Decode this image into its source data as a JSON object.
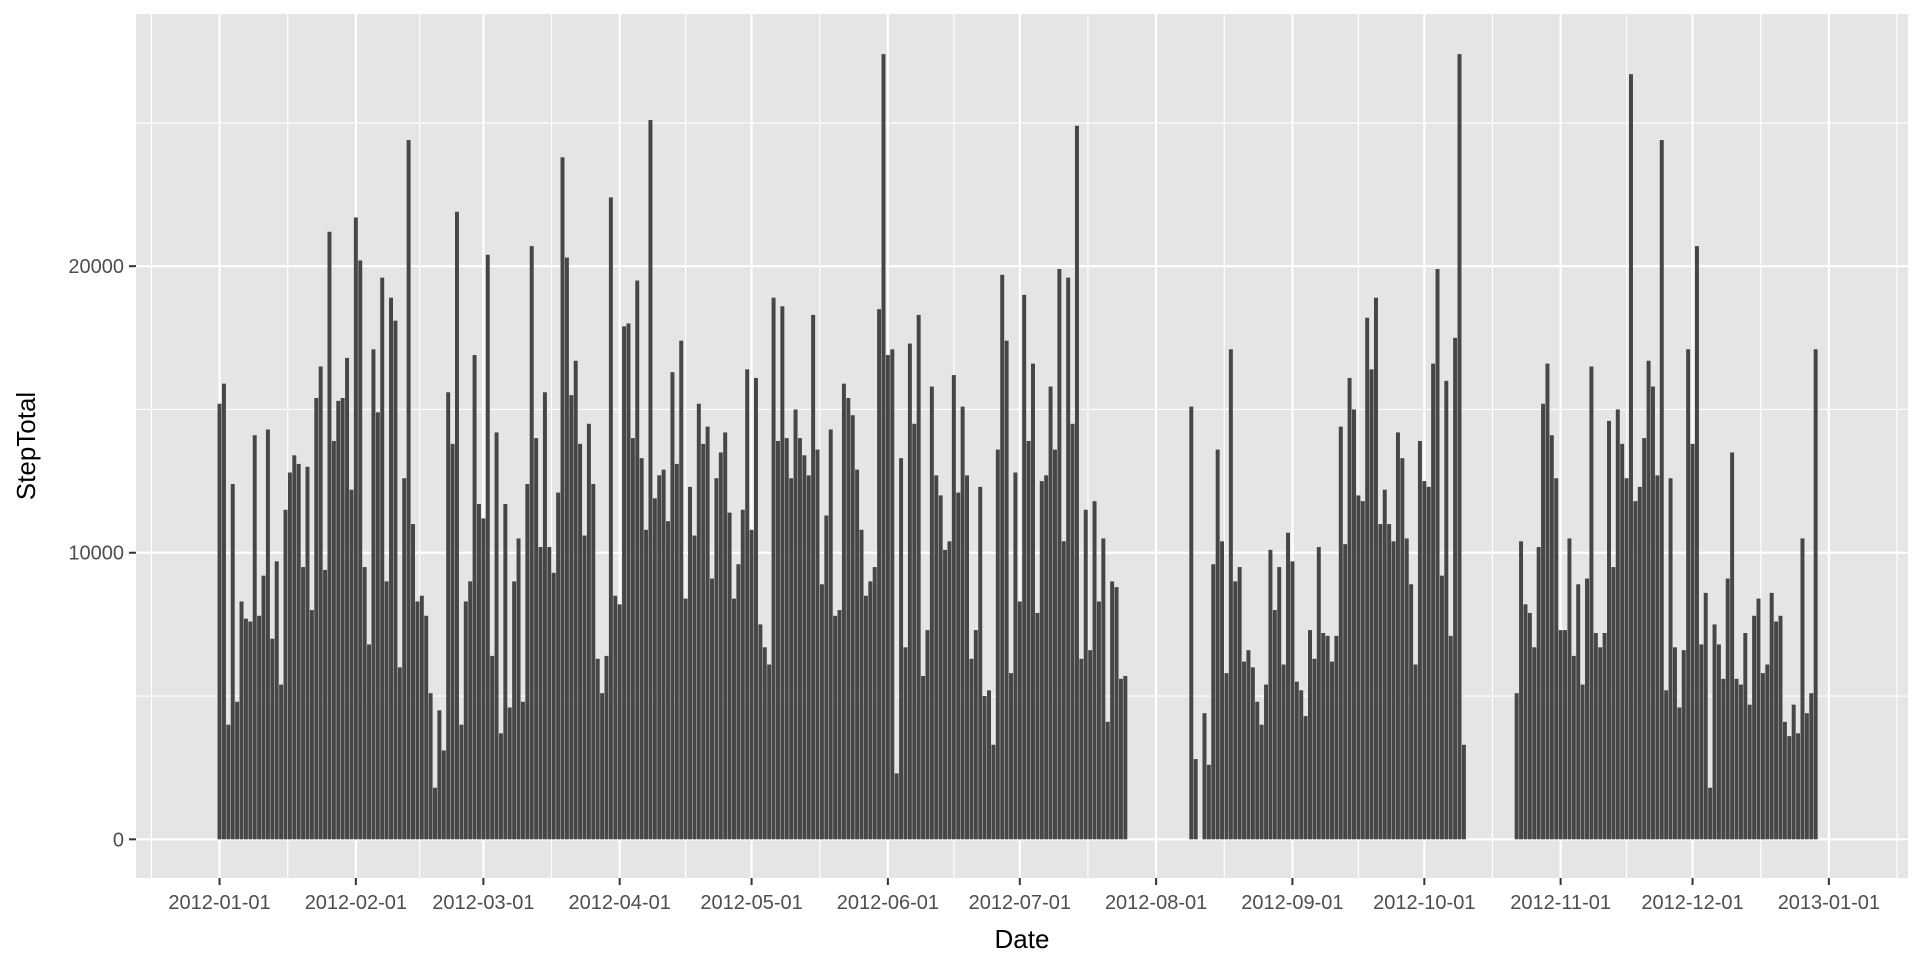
{
  "chart_data": {
    "type": "bar",
    "title": "",
    "xlabel": "Date",
    "ylabel": "StepTotal",
    "xlim": [
      "2011-12-13",
      "2013-01-19"
    ],
    "ylim": [
      -1350,
      28800
    ],
    "x_ticks": [
      "2012-01-01",
      "2012-02-01",
      "2012-03-01",
      "2012-04-01",
      "2012-05-01",
      "2012-06-01",
      "2012-07-01",
      "2012-08-01",
      "2012-09-01",
      "2012-10-01",
      "2012-11-01",
      "2012-12-01",
      "2013-01-01"
    ],
    "y_ticks": [
      0,
      10000,
      20000
    ],
    "grid": true,
    "legend": "none",
    "colors": {
      "panel": "#e5e5e5",
      "grid": "#ffffff",
      "bar": "#464646",
      "text": "#4d4d4d"
    },
    "series": [
      {
        "segments": [
          {
            "start": "2012-01-01",
            "values": [
              15200,
              15900,
              4000,
              12400,
              4800,
              8300,
              7700,
              7600,
              14100,
              7800,
              9200,
              14300,
              7000,
              9700,
              5400,
              11500,
              12800,
              13400,
              13100,
              9500,
              13000,
              8000,
              15400,
              16500,
              9400,
              21200,
              13900,
              15300,
              15400,
              16800,
              12200,
              21700,
              20200,
              9500,
              6800,
              17100,
              14900,
              19600,
              9000,
              18900,
              18100,
              6000,
              12600,
              24400,
              11000,
              8300,
              8500,
              7800,
              5100,
              1800,
              4500,
              3100,
              15600,
              13800,
              21900,
              4000,
              8300,
              9000,
              16900,
              11700,
              11200,
              20400,
              6400,
              14200,
              3700,
              11700,
              4600,
              9000,
              10500,
              4800,
              12400,
              20700,
              14000,
              10200,
              15600,
              10200,
              9300,
              12100,
              23800,
              20300,
              15500,
              16700,
              13800,
              10600,
              14500,
              12400,
              6300,
              5100,
              6400,
              22400,
              8500,
              8200,
              17900,
              18000,
              14000,
              19500,
              13300,
              10800,
              25100,
              11900,
              12700,
              12900,
              11100,
              16300,
              13100,
              17400,
              8400,
              12300,
              10600,
              15200,
              13800,
              14400,
              9100,
              12600,
              13500,
              14200,
              11400,
              8400,
              9600,
              11500,
              16400,
              10800,
              16100,
              7500,
              6700,
              6100,
              18900,
              13900,
              18600,
              14000,
              12600,
              15000,
              14000,
              13400,
              12700,
              18300,
              13600,
              8900,
              11300,
              14300,
              7800,
              8000,
              15900,
              15400,
              14800,
              12900,
              10800,
              8500,
              9000,
              9500,
              18500,
              27400,
              16900,
              17100,
              2300,
              13300,
              6700,
              17300,
              14500,
              18300,
              5700,
              7300,
              15800,
              12700,
              12000,
              10100,
              10400,
              16200,
              12100,
              15100,
              12700,
              6300,
              7300,
              12300,
              5000,
              5200,
              3300,
              13600,
              19700,
              17400,
              5800,
              12800,
              8300,
              19000,
              13900,
              16600,
              7900,
              12500,
              12700,
              15800,
              13600,
              19900,
              10400,
              19600,
              14500,
              24900,
              6300,
              11500,
              6600,
              11800,
              8300,
              10500,
              4100,
              9000,
              8800,
              5600,
              5700
            ]
          },
          {
            "start": "2012-08-09",
            "values": [
              15100,
              2800,
              0,
              4400,
              2600,
              9600,
              13600,
              10400,
              5800,
              17100,
              9000,
              9500,
              6200,
              6600,
              6000,
              4800,
              4000,
              5400,
              10100,
              8000,
              9500,
              6100,
              10700,
              9700,
              5500,
              5200,
              4300,
              7300,
              6300,
              10200,
              7200,
              7100,
              6200,
              7100,
              14400,
              10300,
              16100,
              15000,
              12000,
              11800,
              18200,
              16400,
              18900,
              11000,
              12200,
              11000,
              10400,
              14200,
              13300,
              10500,
              8900,
              6100,
              13900,
              12500,
              12300,
              16600,
              19900,
              9200,
              16000,
              7100,
              17500,
              27400,
              3300
            ]
          },
          {
            "start": "2012-10-22",
            "values": [
              5100,
              10400,
              8200,
              7900,
              6700,
              10200,
              15200,
              16600,
              14100,
              12600,
              7300,
              7300,
              10500,
              6400,
              8900,
              5400,
              9100,
              16500,
              7200,
              6700,
              7200,
              14600,
              9500,
              15000,
              13800,
              12600,
              26700,
              11800,
              12300,
              14000,
              16700,
              15800,
              12700,
              24400,
              5200,
              12600,
              6700,
              4600,
              6600,
              17100,
              13800,
              20700,
              6800,
              8600,
              1800,
              7500,
              6800,
              5600,
              9100,
              13500,
              5600,
              5400,
              7200,
              4700,
              7800,
              8400,
              5800,
              6100,
              8600,
              7600,
              7800,
              4100,
              3600,
              4700,
              3700,
              10500,
              4400,
              5100,
              17100
            ]
          }
        ]
      }
    ]
  }
}
